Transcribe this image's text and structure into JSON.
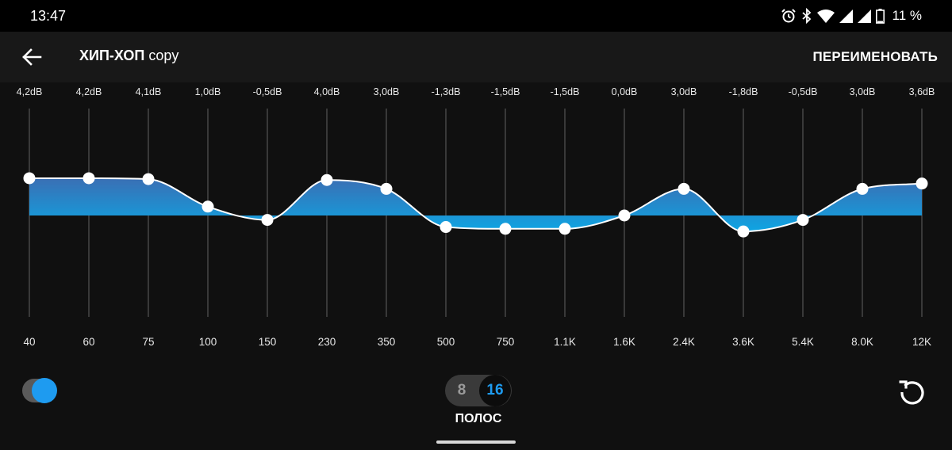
{
  "status_bar": {
    "time": "13:47",
    "battery_percent": "11 %",
    "icons": [
      "alarm-icon",
      "bluetooth-icon",
      "wifi-icon",
      "signal-icon",
      "signal-icon",
      "battery-icon"
    ]
  },
  "header": {
    "back_icon": "arrow-left-icon",
    "title_main": "ХИП-ХОП",
    "title_sub": "copy",
    "rename_label": "ПЕРЕИМЕНОВАТЬ"
  },
  "equalizer": {
    "enabled": true,
    "bands": [
      {
        "freq": "40",
        "gain_label": "4,2dB",
        "gain": 4.2
      },
      {
        "freq": "60",
        "gain_label": "4,2dB",
        "gain": 4.2
      },
      {
        "freq": "75",
        "gain_label": "4,1dB",
        "gain": 4.1
      },
      {
        "freq": "100",
        "gain_label": "1,0dB",
        "gain": 1.0
      },
      {
        "freq": "150",
        "gain_label": "-0,5dB",
        "gain": -0.5
      },
      {
        "freq": "230",
        "gain_label": "4,0dB",
        "gain": 4.0
      },
      {
        "freq": "350",
        "gain_label": "3,0dB",
        "gain": 3.0
      },
      {
        "freq": "500",
        "gain_label": "-1,3dB",
        "gain": -1.3
      },
      {
        "freq": "750",
        "gain_label": "-1,5dB",
        "gain": -1.5
      },
      {
        "freq": "1.1K",
        "gain_label": "-1,5dB",
        "gain": -1.5
      },
      {
        "freq": "1.6K",
        "gain_label": "0,0dB",
        "gain": 0.0
      },
      {
        "freq": "2.4K",
        "gain_label": "3,0dB",
        "gain": 3.0
      },
      {
        "freq": "3.6K",
        "gain_label": "-1,8dB",
        "gain": -1.8
      },
      {
        "freq": "5.4K",
        "gain_label": "-0,5dB",
        "gain": -0.5
      },
      {
        "freq": "8.0K",
        "gain_label": "3,0dB",
        "gain": 3.0
      },
      {
        "freq": "12K",
        "gain_label": "3,6dB",
        "gain": 3.6
      }
    ],
    "gain_range": [
      -12,
      12
    ],
    "colors": {
      "fill_top": "#3a6fb4",
      "fill_bottom": "#0ea5e3",
      "curve": "#ffffff",
      "grid": "#555555"
    }
  },
  "controls": {
    "band_options": [
      "8",
      "16"
    ],
    "selected_bands": "16",
    "bands_label": "ПОЛОС",
    "reset_icon": "reset-icon",
    "toggle_icon": "toggle-switch-icon",
    "accent": "#1e9bf0"
  }
}
